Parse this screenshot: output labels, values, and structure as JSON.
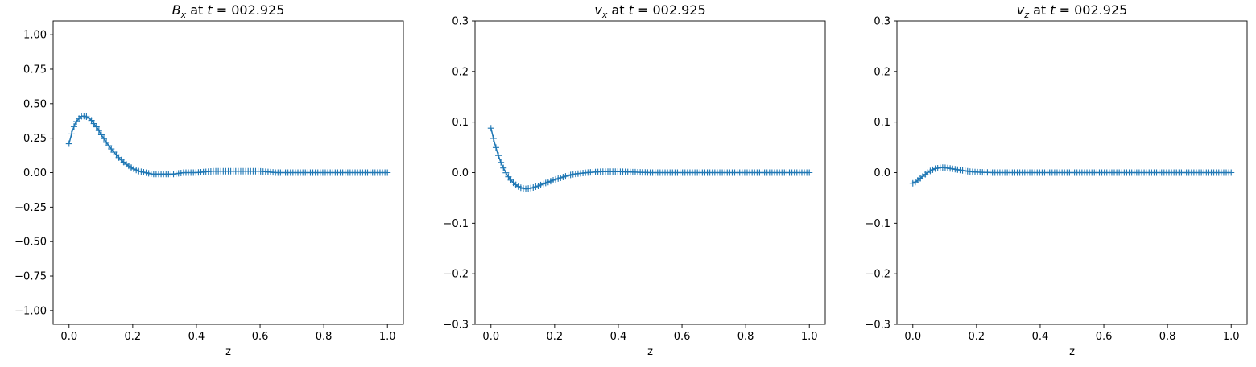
{
  "chart_data": [
    {
      "type": "line",
      "title": {
        "var": "B",
        "sub": "x",
        "mid": " at ",
        "t": "t",
        "eq": " = 002.925"
      },
      "xlabel": "z",
      "ylabel": "",
      "xlim": [
        -0.05,
        1.05
      ],
      "ylim": [
        -1.1,
        1.1
      ],
      "xticks": [
        0.0,
        0.2,
        0.4,
        0.6,
        0.8,
        1.0
      ],
      "yticks": [
        -1.0,
        -0.75,
        -0.5,
        -0.25,
        0.0,
        0.25,
        0.5,
        0.75,
        1.0
      ],
      "xtick_labels": [
        "0.0",
        "0.2",
        "0.4",
        "0.6",
        "0.8",
        "1.0"
      ],
      "ytick_labels": [
        "−1.00",
        "−0.75",
        "−0.50",
        "−0.25",
        "0.00",
        "0.25",
        "0.50",
        "0.75",
        "1.00"
      ],
      "marker": "+",
      "color": "#1f77b4",
      "series": [
        {
          "x": [
            0.0,
            0.01,
            0.02,
            0.03,
            0.04,
            0.05,
            0.06,
            0.07,
            0.08,
            0.09,
            0.1,
            0.12,
            0.14,
            0.16,
            0.18,
            0.2,
            0.22,
            0.24,
            0.26,
            0.28,
            0.3,
            0.33,
            0.36,
            0.4,
            0.45,
            0.5,
            0.55,
            0.6,
            0.65,
            0.7,
            0.8,
            0.9,
            1.0
          ],
          "y": [
            0.21,
            0.3,
            0.36,
            0.39,
            0.41,
            0.41,
            0.4,
            0.38,
            0.35,
            0.32,
            0.28,
            0.21,
            0.15,
            0.1,
            0.06,
            0.03,
            0.01,
            0.0,
            -0.01,
            -0.01,
            -0.01,
            -0.01,
            0.0,
            0.0,
            0.01,
            0.01,
            0.01,
            0.01,
            0.0,
            0.0,
            0.0,
            0.0,
            0.0
          ]
        }
      ]
    },
    {
      "type": "line",
      "title": {
        "var": "v",
        "sub": "x",
        "mid": " at ",
        "t": "t",
        "eq": " = 002.925"
      },
      "xlabel": "z",
      "ylabel": "",
      "xlim": [
        -0.05,
        1.05
      ],
      "ylim": [
        -0.3,
        0.3
      ],
      "xticks": [
        0.0,
        0.2,
        0.4,
        0.6,
        0.8,
        1.0
      ],
      "yticks": [
        -0.3,
        -0.2,
        -0.1,
        0.0,
        0.1,
        0.2,
        0.3
      ],
      "xtick_labels": [
        "0.0",
        "0.2",
        "0.4",
        "0.6",
        "0.8",
        "1.0"
      ],
      "ytick_labels": [
        "−0.3",
        "−0.2",
        "−0.1",
        "0.0",
        "0.1",
        "0.2",
        "0.3"
      ],
      "marker": "+",
      "color": "#1f77b4",
      "series": [
        {
          "x": [
            0.0,
            0.01,
            0.02,
            0.03,
            0.04,
            0.05,
            0.06,
            0.07,
            0.08,
            0.09,
            0.1,
            0.11,
            0.12,
            0.13,
            0.15,
            0.17,
            0.2,
            0.23,
            0.26,
            0.3,
            0.35,
            0.4,
            0.45,
            0.5,
            0.6,
            0.7,
            0.8,
            0.9,
            1.0
          ],
          "y": [
            0.088,
            0.062,
            0.04,
            0.022,
            0.008,
            -0.004,
            -0.013,
            -0.02,
            -0.025,
            -0.029,
            -0.031,
            -0.032,
            -0.031,
            -0.03,
            -0.026,
            -0.021,
            -0.014,
            -0.008,
            -0.003,
            0.0,
            0.002,
            0.002,
            0.001,
            0.0,
            0.0,
            0.0,
            0.0,
            0.0,
            0.0
          ]
        }
      ]
    },
    {
      "type": "line",
      "title": {
        "var": "v",
        "sub": "z",
        "mid": " at ",
        "t": "t",
        "eq": " = 002.925"
      },
      "xlabel": "z",
      "ylabel": "",
      "xlim": [
        -0.05,
        1.05
      ],
      "ylim": [
        -0.3,
        0.3
      ],
      "xticks": [
        0.0,
        0.2,
        0.4,
        0.6,
        0.8,
        1.0
      ],
      "yticks": [
        -0.3,
        -0.2,
        -0.1,
        0.0,
        0.1,
        0.2,
        0.3
      ],
      "xtick_labels": [
        "0.0",
        "0.2",
        "0.4",
        "0.6",
        "0.8",
        "1.0"
      ],
      "ytick_labels": [
        "−0.3",
        "−0.2",
        "−0.1",
        "0.0",
        "0.1",
        "0.2",
        "0.3"
      ],
      "marker": "+",
      "color": "#1f77b4",
      "series": [
        {
          "x": [
            0.0,
            0.01,
            0.02,
            0.03,
            0.04,
            0.05,
            0.06,
            0.07,
            0.08,
            0.09,
            0.1,
            0.11,
            0.12,
            0.14,
            0.16,
            0.18,
            0.2,
            0.25,
            0.3,
            0.4,
            0.5,
            0.6,
            0.7,
            0.8,
            0.9,
            1.0
          ],
          "y": [
            -0.021,
            -0.018,
            -0.013,
            -0.008,
            -0.003,
            0.002,
            0.005,
            0.008,
            0.009,
            0.01,
            0.01,
            0.009,
            0.008,
            0.006,
            0.004,
            0.002,
            0.001,
            0.0,
            0.0,
            0.0,
            0.0,
            0.0,
            0.0,
            0.0,
            0.0,
            0.0
          ]
        }
      ]
    }
  ]
}
